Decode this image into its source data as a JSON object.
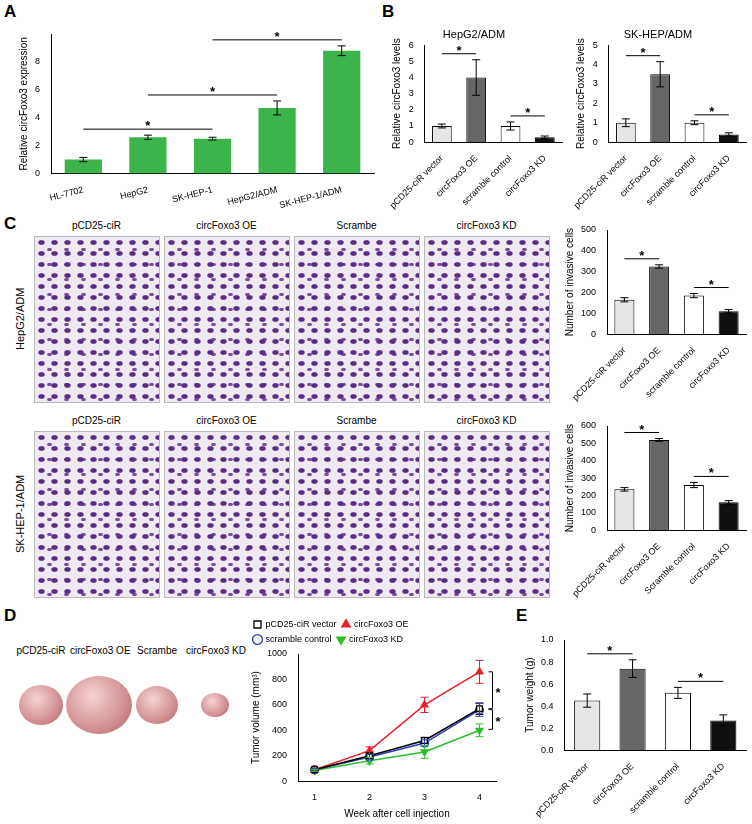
{
  "panel_labels": [
    "A",
    "B",
    "C",
    "D",
    "E"
  ],
  "images": {
    "C": {
      "rows": [
        "HepG2/ADM",
        "SK-HEP-1/ADM"
      ],
      "columns": [
        "pCD25-ciR",
        "circFoxo3 OE",
        "Scrambe",
        "circFoxo3 KD"
      ]
    },
    "D": {
      "columns": [
        "pCD25-ciR",
        "circFoxo3 OE",
        "Scrambe",
        "circFoxo3 KD"
      ]
    }
  },
  "chart_data": [
    {
      "type": "bar",
      "categories": [
        "HL-7702",
        "HepG2",
        "SK-HEP-1",
        "HepG2/ADM",
        "SK-HEP-1/ADM"
      ],
      "values": [
        1.0,
        2.6,
        2.5,
        4.7,
        8.8
      ],
      "errors": [
        0.15,
        0.15,
        0.1,
        0.5,
        0.35
      ],
      "color": "#3cb44b",
      "y_label": "Relative circFoxo3 expression",
      "ylim": [
        0,
        10
      ],
      "yticks": [
        0,
        2,
        4,
        6,
        8
      ],
      "grid": false,
      "significance": [
        {
          "from": 0,
          "to": 2,
          "label": "*"
        },
        {
          "from": 1,
          "to": 3,
          "label": "*"
        },
        {
          "from": 2,
          "to": 4,
          "label": "*"
        }
      ]
    },
    {
      "type": "bar",
      "title": "HepG2/ADM",
      "categories": [
        "pCD25-ciR vector",
        "circFoxo3 OE",
        "scramble control",
        "circFoxo3 KD"
      ],
      "values": [
        1.0,
        4.0,
        1.0,
        0.3
      ],
      "errors": [
        0.12,
        1.1,
        0.25,
        0.08
      ],
      "colors": [
        "#e6e6e6",
        "#666666",
        "#ffffff",
        "#111111"
      ],
      "y_label": "Relative circFoxo3 levels",
      "ylim": [
        0,
        6
      ],
      "yticks": [
        0,
        1,
        2,
        3,
        4,
        5,
        6
      ],
      "grid": false,
      "significance": [
        {
          "from": 0,
          "to": 1,
          "label": "*"
        },
        {
          "from": 2,
          "to": 3,
          "label": "*"
        }
      ]
    },
    {
      "type": "bar",
      "title": "SK-HEP/ADM",
      "categories": [
        "pCD25-ciR vector",
        "circFoxo3 OE",
        "scramble control",
        "circFoxo3 KD"
      ],
      "values": [
        1.0,
        3.5,
        1.0,
        0.4
      ],
      "errors": [
        0.2,
        0.65,
        0.1,
        0.08
      ],
      "colors": [
        "#e6e6e6",
        "#666666",
        "#ffffff",
        "#111111"
      ],
      "y_label": "Relative circFoxo3 levels",
      "ylim": [
        0,
        5
      ],
      "yticks": [
        0,
        1,
        2,
        3,
        4,
        5
      ],
      "grid": false,
      "significance": [
        {
          "from": 0,
          "to": 1,
          "label": "*"
        },
        {
          "from": 2,
          "to": 3,
          "label": "*"
        }
      ]
    },
    {
      "type": "bar",
      "categories": [
        "pCD25-ciR vector",
        "circFoxo3 OE",
        "scramble control",
        "circFoxo3 KD"
      ],
      "values": [
        165,
        325,
        185,
        110
      ],
      "errors": [
        10,
        8,
        10,
        8
      ],
      "colors": [
        "#e6e6e6",
        "#666666",
        "#ffffff",
        "#111111"
      ],
      "y_label": "Number of invasive cells",
      "ylim": [
        0,
        500
      ],
      "yticks": [
        0,
        100,
        200,
        300,
        400,
        500
      ],
      "grid": false,
      "significance": [
        {
          "from": 0,
          "to": 1,
          "label": "*"
        },
        {
          "from": 2,
          "to": 3,
          "label": "*"
        }
      ]
    },
    {
      "type": "bar",
      "categories": [
        "pCD25-ciR vector",
        "circFoxo3 OE",
        "Scramble control",
        "circFoxo3 KD"
      ],
      "values": [
        235,
        520,
        260,
        160
      ],
      "errors": [
        10,
        8,
        15,
        10
      ],
      "colors": [
        "#e6e6e6",
        "#666666",
        "#ffffff",
        "#111111"
      ],
      "y_label": "Number of invasive cells",
      "ylim": [
        0,
        600
      ],
      "yticks": [
        0,
        100,
        200,
        300,
        400,
        500,
        600
      ],
      "grid": false,
      "significance": [
        {
          "from": 0,
          "to": 1,
          "label": "*"
        },
        {
          "from": 2,
          "to": 3,
          "label": "*"
        }
      ]
    },
    {
      "type": "line",
      "x": [
        1,
        2,
        3,
        4
      ],
      "series": [
        {
          "name": "pCD25-ciR vector",
          "color": "#000000",
          "marker": "square-open",
          "values": [
            90,
            200,
            320,
            570
          ],
          "errors": [
            8,
            20,
            25,
            45
          ]
        },
        {
          "name": "circFoxo3 OE",
          "color": "#e8202a",
          "marker": "triangle",
          "values": [
            90,
            240,
            600,
            860
          ],
          "errors": [
            8,
            30,
            60,
            90
          ]
        },
        {
          "name": "scramble control",
          "color": "#2b3bbd",
          "marker": "circle-open",
          "values": [
            90,
            190,
            300,
            560
          ],
          "errors": [
            8,
            20,
            25,
            50
          ]
        },
        {
          "name": "circFoxo3 KD",
          "color": "#2bc02b",
          "marker": "triangle-down",
          "values": [
            85,
            160,
            230,
            400
          ],
          "errors": [
            8,
            25,
            50,
            50
          ]
        }
      ],
      "x_label": "Week after cell injection",
      "y_label": "Tumor volume (mm³)",
      "xlim": [
        0.7,
        4.3
      ],
      "xticks": [
        1,
        2,
        3,
        4
      ],
      "ylim": [
        0,
        1000
      ],
      "yticks": [
        0,
        200,
        400,
        600,
        800,
        1000
      ],
      "legend": "top-left",
      "grid": false,
      "significance": [
        {
          "series": [
            1,
            0
          ],
          "label": "*"
        },
        {
          "series": [
            0,
            3
          ],
          "label": "*"
        }
      ]
    },
    {
      "type": "bar",
      "categories": [
        "pCD25-ciR vector",
        "circFoxo3 OE",
        "scramble control",
        "circFoxo3 KD"
      ],
      "values": [
        0.45,
        0.74,
        0.52,
        0.27
      ],
      "errors": [
        0.06,
        0.08,
        0.05,
        0.05
      ],
      "colors": [
        "#e6e6e6",
        "#666666",
        "#ffffff",
        "#111111"
      ],
      "y_label": "Tumor weight (g)",
      "ylim": [
        0,
        1
      ],
      "yticks": [
        {
          "value": 0,
          "label": "0.0"
        },
        0.2,
        0.4,
        0.6,
        0.8,
        {
          "value": 1,
          "label": "1.0"
        }
      ],
      "grid": false,
      "significance": [
        {
          "from": 0,
          "to": 1,
          "label": "*"
        },
        {
          "from": 2,
          "to": 3,
          "label": "*"
        }
      ]
    }
  ]
}
